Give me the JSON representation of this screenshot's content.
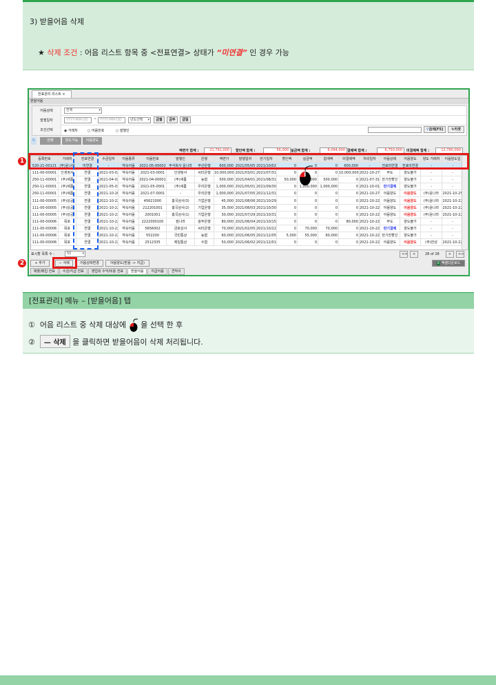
{
  "intro": {
    "title": "3) 받을어음 삭제",
    "star": "★",
    "cond_label": "삭제 조건",
    "cond_text1": " : 어음 리스트 항목  중 <전표연결> 상태가 ",
    "cond_value": "“미연결”",
    "cond_text2": " 인 경우 가능"
  },
  "app": {
    "window_tab": "전표관리 리스트",
    "window_tab_close": "×",
    "section_title": "받을어음",
    "filters": {
      "status_label": "어음상태",
      "status_value": "전체",
      "date_label": "발행일자",
      "date_from_placeholder": "YYYY-MM-DD",
      "date_to_placeholder": "YYYY-MM-DD",
      "date_sep": "~",
      "year_select": "년도선택",
      "btn_month": "금월",
      "btn_week": "금주",
      "btn_day": "금일",
      "cond_label": "조건선택",
      "radio_options": [
        "거래처",
        "어음번호",
        "발행인"
      ],
      "search_button": "검색[F5]",
      "reset_button": "리셋"
    },
    "filter_tabs": [
      "전체",
      "양도가능",
      "어음양도"
    ],
    "totals": [
      {
        "label": "액면가 합계 :",
        "value": "21,791,000"
      },
      {
        "label": "할인액 합계 :",
        "value": "56,000"
      },
      {
        "label": "실금액 합계 :",
        "value": "6,094,000"
      },
      {
        "label": "결제액 합계 :",
        "value": "6,750,000"
      },
      {
        "label": "미결제액 합계 :",
        "value": "12,780,000"
      }
    ],
    "columns": [
      "등록번호",
      "거래처",
      "전표연결",
      "수금일자",
      "어음종류",
      "어음번호",
      "발행인",
      "은행",
      "액면가",
      "발행일자",
      "만기일자",
      "할인액",
      "실금액",
      "합계액",
      "미결제액",
      "처리일자",
      "어음상태",
      "어음양도",
      "양도 거래처",
      "어음양도일"
    ],
    "rows": [
      [
        "520-21-00121",
        "(주)윤나라",
        "미연결",
        "-",
        "약속어음",
        "2021-05-00002",
        "주식회사 윤나라",
        "부산은행",
        "600,000",
        "2021/05/05",
        "2021/10/02",
        "0",
        "0",
        "0",
        "600,000",
        "-",
        "전표미연결",
        "전표미연결",
        "-",
        "-"
      ],
      [
        "111-00-00001",
        "인생정서",
        "연결",
        "2021-03-02",
        "약속어음",
        "2021-03-0001",
        "인생정서",
        "씨티은행",
        "10,000,000",
        "2021/03/01",
        "2021/07/31",
        "0",
        "0",
        "0",
        "10,000,000",
        "2021-10-27",
        "부도",
        "양도불가",
        "-",
        "-"
      ],
      [
        "250-11-00001",
        "(주)새롬",
        "연결",
        "2021-04-02",
        "약속어음",
        "2021-04-00001",
        "(주)새롬",
        "농협",
        "500,000",
        "2021/04/01",
        "2021/08/31",
        "50,000",
        "450,000",
        "500,000",
        "0",
        "2021-07-31",
        "만기전할인",
        "양도불가",
        "-",
        "-"
      ],
      [
        "250-11-00001",
        "(주)새롬",
        "연결",
        "2021-05-03",
        "약속어음",
        "2021-05-0001",
        "(주)새롬",
        "우리은행",
        "1,000,000",
        "2021/05/01",
        "2021/09/30",
        "0",
        "1,000,000",
        "1,000,000",
        "0",
        "2021-10-01",
        "만기결제",
        "양도불가",
        "-",
        "-"
      ],
      [
        "250-11-00001",
        "(주)새롬",
        "연결",
        "2021-10-20",
        "약속어음",
        "2021-07-0001",
        "-",
        "우리은행",
        "1,000,000",
        "2021/07/05",
        "2021/12/31",
        "0",
        "0",
        "0",
        "0",
        "2021-10-27",
        "어음양도",
        "어음양도",
        "(주)윤나라",
        "2021-10-25"
      ],
      [
        "111-00-00005",
        "(주)성공",
        "연결",
        "2021-10-22",
        "약속어음",
        "45621000",
        "홍국상사(3)",
        "기업은행",
        "45,000",
        "2021/08/06",
        "2021/10/29",
        "0",
        "0",
        "0",
        "0",
        "2021-10-22",
        "어음양도",
        "어음양도",
        "(주)윤나라",
        "2021-10-22"
      ],
      [
        "111-00-00005",
        "(주)성공",
        "연결",
        "2021-10-22",
        "약속어음",
        "212201001",
        "홍국상사(2)",
        "기업은행",
        "35,000",
        "2021/08/03",
        "2021/10/30",
        "0",
        "0",
        "0",
        "0",
        "2021-10-22",
        "어음양도",
        "어음양도",
        "(주)윤나라",
        "2021-10-22"
      ],
      [
        "111-00-00005",
        "(주)성공",
        "연결",
        "2021-10-22",
        "약속어음",
        "2001001",
        "홍국상사(1)",
        "기업은행",
        "30,000",
        "2021/07/29",
        "2021/10/31",
        "0",
        "0",
        "0",
        "0",
        "2021-10-22",
        "어음양도",
        "어음양도",
        "(주)윤나라",
        "2021-10-22"
      ],
      [
        "111-00-00006",
        "목포",
        "연결",
        "2021-10-22",
        "약속어음",
        "2222000100",
        "컴나라",
        "광주은행",
        "80,000",
        "2021/06/04",
        "2021/10/15",
        "0",
        "0",
        "0",
        "80,000",
        "2021-10-22",
        "부도",
        "양도불가",
        "-",
        "-"
      ],
      [
        "111-00-00006",
        "목포",
        "연결",
        "2021-10-22",
        "약속어음",
        "5656002",
        "금호상사",
        "씨티은행",
        "70,000",
        "2021/02/05",
        "2021/10/22",
        "0",
        "70,000",
        "70,000",
        "0",
        "2021-10-22",
        "만기결제",
        "양도불가",
        "-",
        "-"
      ],
      [
        "111-00-00006",
        "목포",
        "연결",
        "2021-10-22",
        "약속어음",
        "552200",
        "국민통상",
        "농협",
        "60,000",
        "2021/06/05",
        "2021/12/05",
        "5,000",
        "55,000",
        "60,000",
        "0",
        "2021-10-22",
        "만기전할인",
        "양도불가",
        "-",
        "-"
      ],
      [
        "111-00-00006",
        "목포",
        "연결",
        "2021-10-22",
        "약속어음",
        "2512335",
        "제일통상",
        "수협",
        "50,000",
        "2021/06/02",
        "2021/12/01",
        "0",
        "0",
        "0",
        "0",
        "2021-10-22",
        "어음양도",
        "어음양도",
        "(주)한성",
        "2021-10-22"
      ]
    ],
    "page_size_label": "표시할 목록 수 :",
    "page_size_value": "50",
    "pagination": {
      "first": "<<",
      "prev": "<",
      "info": "28 of 28",
      "next": ">",
      "last": ">>"
    },
    "actions": {
      "add": "+ 추가",
      "delete": "— 삭제",
      "status_change": "어음상태변경",
      "transfer": "어음양도(받음 -> 지급)"
    },
    "excel_download": "엑셀다운로드",
    "bottom_tabs": [
      "매출/매입 전표",
      "수금/지급 전표",
      "영업외 수익/비용 전표",
      "받을어음",
      "지급어음",
      "견적서"
    ],
    "active_bottom_tab": "받을어음",
    "markers": [
      "1",
      "2"
    ]
  },
  "guide": {
    "header": "[전표관리] 메뉴 – [받을어음] 탭",
    "step1_num": "①",
    "step1_a": "어음 리스트 중 삭제 대상에",
    "step1_b": "을  선택 한 후",
    "step2_num": "②",
    "step2_button": "— 삭제",
    "step2_text": "을 클릭하면 받을어음이 삭제 처리됩니다."
  },
  "colors": {
    "accent_green": "#2ea44f",
    "highlight_red": "#e41a1a",
    "dashed_blue": "#1560ee",
    "link_blue": "#2233ee"
  }
}
